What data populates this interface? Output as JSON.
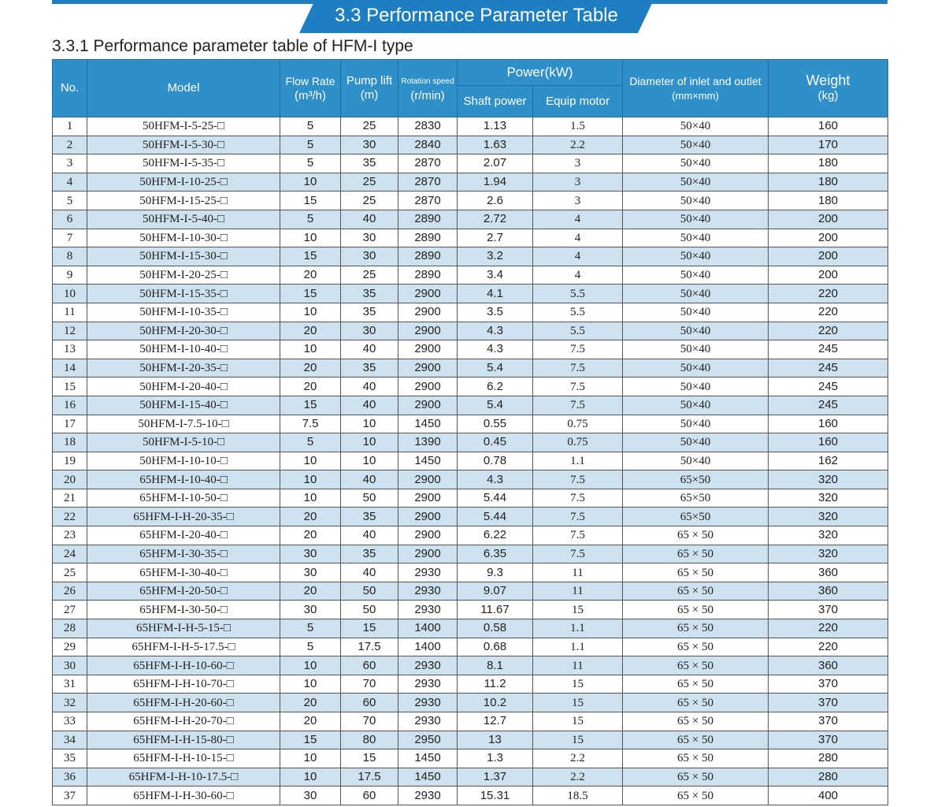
{
  "header": {
    "title": "3.3 Performance Parameter Table"
  },
  "subtitle": "3.3.1 Performance parameter table of HFM-I type",
  "table": {
    "columns": {
      "no": "No.",
      "model": "Model",
      "flow_rate": [
        "Flow Rate",
        "(m³/h)"
      ],
      "pump_lift": [
        "Pump lift",
        "(m)"
      ],
      "rotation_speed": [
        "Rotation speed",
        "(r/min)"
      ],
      "power": "Power(kW)",
      "shaft_power": "Shaft power",
      "equip_motor": "Equip motor",
      "diameter": [
        "Diameter of inlet and outlet",
        "(mm×mm)"
      ],
      "weight": [
        "Weight",
        "(kg)"
      ]
    },
    "rows": [
      [
        1,
        "50HFM-I-5-25-□",
        5,
        25,
        2830,
        1.13,
        1.5,
        "50×40",
        160
      ],
      [
        2,
        "50HFM-I-5-30-□",
        5,
        30,
        2840,
        1.63,
        2.2,
        "50×40",
        170
      ],
      [
        3,
        "50HFM-I-5-35-□",
        5,
        35,
        2870,
        2.07,
        3,
        "50×40",
        180
      ],
      [
        4,
        "50HFM-I-10-25-□",
        10,
        25,
        2870,
        1.94,
        3,
        "50×40",
        180
      ],
      [
        5,
        "50HFM-I-15-25-□",
        15,
        25,
        2870,
        2.6,
        3,
        "50×40",
        180
      ],
      [
        6,
        "50HFM-I-5-40-□",
        5,
        40,
        2890,
        2.72,
        4,
        "50×40",
        200
      ],
      [
        7,
        "50HFM-I-10-30-□",
        10,
        30,
        2890,
        2.7,
        4,
        "50×40",
        200
      ],
      [
        8,
        "50HFM-I-15-30-□",
        15,
        30,
        2890,
        3.2,
        4,
        "50×40",
        200
      ],
      [
        9,
        "50HFM-I-20-25-□",
        20,
        25,
        2890,
        3.4,
        4,
        "50×40",
        200
      ],
      [
        10,
        "50HFM-I-15-35-□",
        15,
        35,
        2900,
        4.1,
        5.5,
        "50×40",
        220
      ],
      [
        11,
        "50HFM-I-10-35-□",
        10,
        35,
        2900,
        3.5,
        5.5,
        "50×40",
        220
      ],
      [
        12,
        "50HFM-I-20-30-□",
        20,
        30,
        2900,
        4.3,
        5.5,
        "50×40",
        220
      ],
      [
        13,
        "50HFM-I-10-40-□",
        10,
        40,
        2900,
        4.3,
        7.5,
        "50×40",
        245
      ],
      [
        14,
        "50HFM-I-20-35-□",
        20,
        35,
        2900,
        5.4,
        7.5,
        "50×40",
        245
      ],
      [
        15,
        "50HFM-I-20-40-□",
        20,
        40,
        2900,
        6.2,
        7.5,
        "50×40",
        245
      ],
      [
        16,
        "50HFM-I-15-40-□",
        15,
        40,
        2900,
        5.4,
        7.5,
        "50×40",
        245
      ],
      [
        17,
        "50HFM-I-7.5-10-□",
        7.5,
        10,
        1450,
        0.55,
        0.75,
        "50×40",
        160
      ],
      [
        18,
        "50HFM-I-5-10-□",
        5,
        10,
        1390,
        0.45,
        0.75,
        "50×40",
        160
      ],
      [
        19,
        "50HFM-I-10-10-□",
        10,
        10,
        1450,
        0.78,
        1.1,
        "50×40",
        162
      ],
      [
        20,
        "65HFM-I-10-40-□",
        10,
        40,
        2900,
        4.3,
        7.5,
        "65×50",
        320
      ],
      [
        21,
        "65HFM-I-10-50-□",
        10,
        50,
        2900,
        5.44,
        7.5,
        "65×50",
        320
      ],
      [
        22,
        "65HFM-I-H-20-35-□",
        20,
        35,
        2900,
        5.44,
        7.5,
        "65×50",
        320
      ],
      [
        23,
        "65HFM-I-20-40-□",
        20,
        40,
        2900,
        6.22,
        7.5,
        "65 × 50",
        320
      ],
      [
        24,
        "65HFM-I-30-35-□",
        30,
        35,
        2900,
        6.35,
        7.5,
        "65 × 50",
        320
      ],
      [
        25,
        "65HFM-I-30-40-□",
        30,
        40,
        2930,
        9.3,
        11,
        "65 × 50",
        360
      ],
      [
        26,
        "65HFM-I-20-50-□",
        20,
        50,
        2930,
        9.07,
        11,
        "65 × 50",
        360
      ],
      [
        27,
        "65HFM-I-30-50-□",
        30,
        50,
        2930,
        11.67,
        15,
        "65 × 50",
        370
      ],
      [
        28,
        "65HFM-I-H-5-15-□",
        5,
        15,
        1400,
        0.58,
        1.1,
        "65 × 50",
        220
      ],
      [
        29,
        "65HFM-I-H-5-17.5-□",
        5,
        17.5,
        1400,
        0.68,
        1.1,
        "65 × 50",
        220
      ],
      [
        30,
        "65HFM-I-H-10-60-□",
        10,
        60,
        2930,
        8.1,
        11,
        "65 × 50",
        360
      ],
      [
        31,
        "65HFM-I-H-10-70-□",
        10,
        70,
        2930,
        11.2,
        15,
        "65 × 50",
        370
      ],
      [
        32,
        "65HFM-I-H-20-60-□",
        20,
        60,
        2930,
        10.2,
        15,
        "65 × 50",
        370
      ],
      [
        33,
        "65HFM-I-H-20-70-□",
        20,
        70,
        2930,
        12.7,
        15,
        "65 × 50",
        370
      ],
      [
        34,
        "65HFM-I-H-15-80-□",
        15,
        80,
        2950,
        13,
        15,
        "65 × 50",
        370
      ],
      [
        35,
        "65HFM-I-H-10-15-□",
        10,
        15,
        1450,
        1.3,
        2.2,
        "65 × 50",
        280
      ],
      [
        36,
        "65HFM-I-H-10-17.5-□",
        10,
        17.5,
        1450,
        1.37,
        2.2,
        "65 × 50",
        280
      ],
      [
        37,
        "65HFM-I-H-30-60-□",
        30,
        60,
        2930,
        15.31,
        18.5,
        "65 × 50",
        400
      ]
    ]
  }
}
